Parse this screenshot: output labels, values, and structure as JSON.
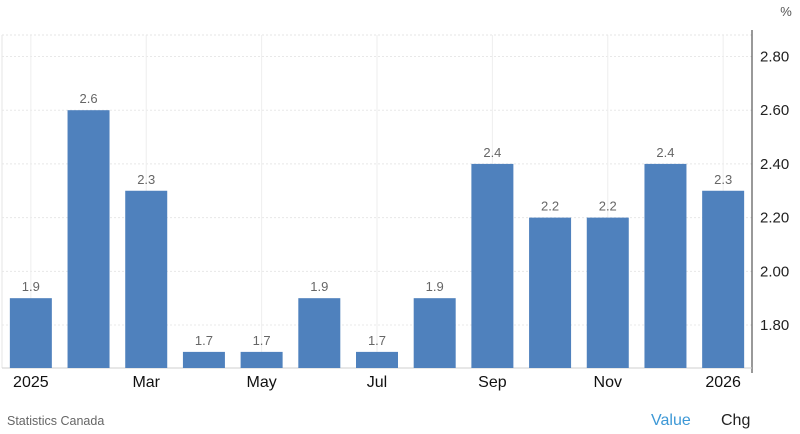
{
  "chart_data": {
    "type": "bar",
    "categories": [
      "Jan 2025",
      "Feb 2025",
      "Mar 2025",
      "Apr 2025",
      "May 2025",
      "Jun 2025",
      "Jul 2025",
      "Aug 2025",
      "Sep 2025",
      "Oct 2025",
      "Nov 2025",
      "Dec 2025",
      "Jan 2026"
    ],
    "values": [
      1.9,
      2.6,
      2.3,
      1.7,
      1.7,
      1.9,
      1.7,
      1.9,
      2.4,
      2.2,
      2.2,
      2.4,
      2.3
    ],
    "data_labels": [
      "1.9",
      "2.6",
      "2.3",
      "1.7",
      "1.7",
      "1.9",
      "1.7",
      "1.9",
      "2.4",
      "2.2",
      "2.2",
      "2.4",
      "2.3"
    ],
    "x_tick_labels": [
      {
        "index": 0,
        "label": "2025"
      },
      {
        "index": 2,
        "label": "Mar"
      },
      {
        "index": 4,
        "label": "May"
      },
      {
        "index": 6,
        "label": "Jul"
      },
      {
        "index": 8,
        "label": "Sep"
      },
      {
        "index": 10,
        "label": "Nov"
      },
      {
        "index": 12,
        "label": "2026"
      }
    ],
    "y_ticks": [
      "1.80",
      "2.00",
      "2.20",
      "2.40",
      "2.60",
      "2.80"
    ],
    "y_tick_values": [
      1.8,
      2.0,
      2.2,
      2.4,
      2.6,
      2.8
    ],
    "ylim": [
      1.64,
      2.88
    ],
    "y_unit": "%",
    "y_axis_side": "right",
    "grid": true,
    "bar_color": "#4f81bd"
  },
  "footer": {
    "source": "Statistics Canada",
    "value_label": "Value",
    "chg_label": "Chg"
  }
}
